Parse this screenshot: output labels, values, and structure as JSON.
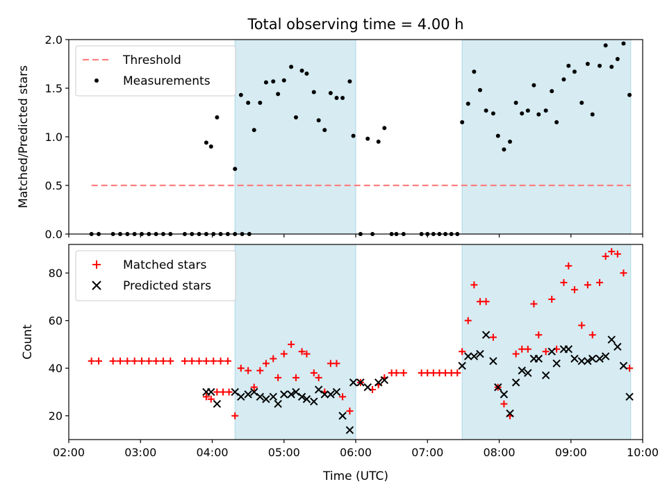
{
  "chart_data": [
    {
      "type": "scatter",
      "title": "Total observing time = 4.00 h",
      "xlabel": "",
      "ylabel": "Matched/Predicted stars",
      "xlim": [
        "02:00",
        "10:00"
      ],
      "ylim": [
        0,
        2.0
      ],
      "yticks": [
        "0.0",
        "0.5",
        "1.0",
        "1.5",
        "2.0"
      ],
      "legend_position": "top-left",
      "shaded_intervals": [
        [
          "04:19",
          "06:00"
        ],
        [
          "07:29",
          "09:50"
        ]
      ],
      "shade_color": "#add8e6",
      "series": [
        {
          "name": "Threshold",
          "kind": "dashed-line",
          "color": "#ff7f7f",
          "x": [
            "02:19",
            "09:50"
          ],
          "y": [
            0.5,
            0.5
          ]
        },
        {
          "name": "Measurements",
          "kind": "dot",
          "color": "#000000",
          "points": [
            [
              "02:19",
              0
            ],
            [
              "02:25",
              0
            ],
            [
              "02:37",
              0
            ],
            [
              "02:43",
              0
            ],
            [
              "02:49",
              0
            ],
            [
              "02:55",
              0
            ],
            [
              "03:01",
              0
            ],
            [
              "03:07",
              0
            ],
            [
              "03:13",
              0
            ],
            [
              "03:19",
              0
            ],
            [
              "03:25",
              0
            ],
            [
              "03:37",
              0
            ],
            [
              "03:43",
              0
            ],
            [
              "03:49",
              0
            ],
            [
              "03:55",
              0
            ],
            [
              "04:01",
              0
            ],
            [
              "04:07",
              0
            ],
            [
              "04:13",
              0
            ],
            [
              "04:19",
              0
            ],
            [
              "04:25",
              0
            ],
            [
              "04:31",
              0
            ],
            [
              "03:55",
              0.94
            ],
            [
              "03:59",
              0.9
            ],
            [
              "04:04",
              1.2
            ],
            [
              "04:19",
              0.67
            ],
            [
              "04:24",
              1.43
            ],
            [
              "04:30",
              1.35
            ],
            [
              "04:35",
              1.07
            ],
            [
              "04:40",
              1.35
            ],
            [
              "04:45",
              1.56
            ],
            [
              "04:51",
              1.57
            ],
            [
              "04:55",
              1.44
            ],
            [
              "05:00",
              1.58
            ],
            [
              "05:06",
              1.72
            ],
            [
              "05:10",
              1.2
            ],
            [
              "05:15",
              1.68
            ],
            [
              "05:19",
              1.65
            ],
            [
              "05:25",
              1.46
            ],
            [
              "05:29",
              1.17
            ],
            [
              "05:34",
              1.07
            ],
            [
              "05:39",
              1.45
            ],
            [
              "05:44",
              1.4
            ],
            [
              "05:49",
              1.4
            ],
            [
              "05:55",
              1.57
            ],
            [
              "05:58",
              1.01
            ],
            [
              "06:04",
              0
            ],
            [
              "06:10",
              0.98
            ],
            [
              "06:14",
              0
            ],
            [
              "06:19",
              0.95
            ],
            [
              "06:24",
              1.09
            ],
            [
              "06:30",
              0
            ],
            [
              "06:34",
              0
            ],
            [
              "06:40",
              0
            ],
            [
              "06:55",
              0
            ],
            [
              "07:00",
              0
            ],
            [
              "07:05",
              0
            ],
            [
              "07:10",
              0
            ],
            [
              "07:15",
              0
            ],
            [
              "07:20",
              0
            ],
            [
              "07:25",
              0
            ],
            [
              "07:29",
              1.15
            ],
            [
              "07:34",
              1.34
            ],
            [
              "07:39",
              1.67
            ],
            [
              "07:44",
              1.48
            ],
            [
              "07:49",
              1.27
            ],
            [
              "07:55",
              1.24
            ],
            [
              "07:59",
              1.01
            ],
            [
              "08:04",
              0.87
            ],
            [
              "08:09",
              0.95
            ],
            [
              "08:14",
              1.35
            ],
            [
              "08:19",
              1.24
            ],
            [
              "08:24",
              1.27
            ],
            [
              "08:29",
              1.53
            ],
            [
              "08:33",
              1.23
            ],
            [
              "08:39",
              1.27
            ],
            [
              "08:44",
              1.47
            ],
            [
              "08:48",
              1.15
            ],
            [
              "08:54",
              1.59
            ],
            [
              "08:58",
              1.73
            ],
            [
              "09:03",
              1.67
            ],
            [
              "09:09",
              1.35
            ],
            [
              "09:14",
              1.75
            ],
            [
              "09:18",
              1.23
            ],
            [
              "09:24",
              1.73
            ],
            [
              "09:29",
              1.94
            ],
            [
              "09:34",
              1.72
            ],
            [
              "09:39",
              1.8
            ],
            [
              "09:44",
              1.96
            ],
            [
              "09:49",
              1.43
            ]
          ]
        }
      ]
    },
    {
      "type": "scatter",
      "title": "",
      "xlabel": "Time (UTC)",
      "ylabel": "Count",
      "xlim": [
        "02:00",
        "10:00"
      ],
      "ylim": [
        10,
        92
      ],
      "xticks": [
        "02:00",
        "03:00",
        "04:00",
        "05:00",
        "06:00",
        "07:00",
        "08:00",
        "09:00",
        "10:00"
      ],
      "yticks": [
        "20",
        "40",
        "60",
        "80"
      ],
      "legend_position": "top-left",
      "shaded_intervals": [
        [
          "04:19",
          "06:00"
        ],
        [
          "07:29",
          "09:50"
        ]
      ],
      "shade_color": "#add8e6",
      "series": [
        {
          "name": "Matched stars",
          "kind": "plus",
          "color": "#ff0000",
          "points": [
            [
              "02:19",
              43
            ],
            [
              "02:25",
              43
            ],
            [
              "02:37",
              43
            ],
            [
              "02:43",
              43
            ],
            [
              "02:49",
              43
            ],
            [
              "02:55",
              43
            ],
            [
              "03:01",
              43
            ],
            [
              "03:07",
              43
            ],
            [
              "03:13",
              43
            ],
            [
              "03:19",
              43
            ],
            [
              "03:25",
              43
            ],
            [
              "03:37",
              43
            ],
            [
              "03:43",
              43
            ],
            [
              "03:49",
              43
            ],
            [
              "03:55",
              43
            ],
            [
              "04:01",
              43
            ],
            [
              "04:07",
              43
            ],
            [
              "04:13",
              43
            ],
            [
              "03:55",
              28
            ],
            [
              "03:59",
              27
            ],
            [
              "04:04",
              30
            ],
            [
              "04:09",
              30
            ],
            [
              "04:14",
              30
            ],
            [
              "04:19",
              20
            ],
            [
              "04:24",
              40
            ],
            [
              "04:30",
              39
            ],
            [
              "04:35",
              32
            ],
            [
              "04:40",
              39
            ],
            [
              "04:45",
              42
            ],
            [
              "04:51",
              44
            ],
            [
              "04:55",
              36
            ],
            [
              "05:00",
              46
            ],
            [
              "05:06",
              50
            ],
            [
              "05:10",
              36
            ],
            [
              "05:15",
              47
            ],
            [
              "05:19",
              46
            ],
            [
              "05:25",
              38
            ],
            [
              "05:29",
              36
            ],
            [
              "05:34",
              30
            ],
            [
              "05:39",
              42
            ],
            [
              "05:44",
              42
            ],
            [
              "05:49",
              28
            ],
            [
              "05:55",
              22
            ],
            [
              "06:04",
              34
            ],
            [
              "06:14",
              31
            ],
            [
              "06:19",
              33
            ],
            [
              "06:24",
              36
            ],
            [
              "06:30",
              38
            ],
            [
              "06:34",
              38
            ],
            [
              "06:40",
              38
            ],
            [
              "06:55",
              38
            ],
            [
              "07:00",
              38
            ],
            [
              "07:05",
              38
            ],
            [
              "07:10",
              38
            ],
            [
              "07:15",
              38
            ],
            [
              "07:20",
              38
            ],
            [
              "07:25",
              38
            ],
            [
              "07:29",
              47
            ],
            [
              "07:34",
              60
            ],
            [
              "07:39",
              75
            ],
            [
              "07:44",
              68
            ],
            [
              "07:49",
              68
            ],
            [
              "07:55",
              53
            ],
            [
              "07:59",
              32
            ],
            [
              "08:04",
              25
            ],
            [
              "08:09",
              20
            ],
            [
              "08:14",
              46
            ],
            [
              "08:19",
              48
            ],
            [
              "08:24",
              48
            ],
            [
              "08:29",
              67
            ],
            [
              "08:33",
              54
            ],
            [
              "08:39",
              47
            ],
            [
              "08:44",
              69
            ],
            [
              "08:48",
              48
            ],
            [
              "08:54",
              76
            ],
            [
              "08:58",
              83
            ],
            [
              "09:03",
              73
            ],
            [
              "09:09",
              58
            ],
            [
              "09:14",
              75
            ],
            [
              "09:18",
              54
            ],
            [
              "09:24",
              76
            ],
            [
              "09:29",
              87
            ],
            [
              "09:34",
              89
            ],
            [
              "09:39",
              88
            ],
            [
              "09:44",
              80
            ],
            [
              "09:49",
              40
            ]
          ]
        },
        {
          "name": "Predicted stars",
          "kind": "x",
          "color": "#000000",
          "points": [
            [
              "03:55",
              30
            ],
            [
              "03:59",
              30
            ],
            [
              "04:04",
              25
            ],
            [
              "04:19",
              30
            ],
            [
              "04:24",
              28
            ],
            [
              "04:30",
              29
            ],
            [
              "04:35",
              30
            ],
            [
              "04:40",
              28
            ],
            [
              "04:45",
              27
            ],
            [
              "04:51",
              28
            ],
            [
              "04:55",
              25
            ],
            [
              "05:00",
              29
            ],
            [
              "05:06",
              29
            ],
            [
              "05:10",
              30
            ],
            [
              "05:15",
              28
            ],
            [
              "05:19",
              27
            ],
            [
              "05:25",
              26
            ],
            [
              "05:29",
              31
            ],
            [
              "05:34",
              29
            ],
            [
              "05:39",
              29
            ],
            [
              "05:44",
              30
            ],
            [
              "05:49",
              20
            ],
            [
              "05:55",
              14
            ],
            [
              "05:58",
              34
            ],
            [
              "06:04",
              34
            ],
            [
              "06:10",
              32
            ],
            [
              "06:19",
              34
            ],
            [
              "06:24",
              35
            ],
            [
              "07:29",
              41
            ],
            [
              "07:34",
              45
            ],
            [
              "07:39",
              45
            ],
            [
              "07:44",
              46
            ],
            [
              "07:49",
              54
            ],
            [
              "07:55",
              43
            ],
            [
              "07:59",
              32
            ],
            [
              "08:04",
              29
            ],
            [
              "08:09",
              21
            ],
            [
              "08:14",
              34
            ],
            [
              "08:19",
              39
            ],
            [
              "08:24",
              38
            ],
            [
              "08:29",
              44
            ],
            [
              "08:33",
              44
            ],
            [
              "08:39",
              37
            ],
            [
              "08:44",
              47
            ],
            [
              "08:48",
              42
            ],
            [
              "08:54",
              48
            ],
            [
              "08:58",
              48
            ],
            [
              "09:03",
              44
            ],
            [
              "09:09",
              43
            ],
            [
              "09:14",
              43
            ],
            [
              "09:18",
              44
            ],
            [
              "09:24",
              44
            ],
            [
              "09:29",
              45
            ],
            [
              "09:34",
              52
            ],
            [
              "09:39",
              49
            ],
            [
              "09:44",
              41
            ],
            [
              "09:49",
              28
            ]
          ]
        }
      ]
    }
  ]
}
